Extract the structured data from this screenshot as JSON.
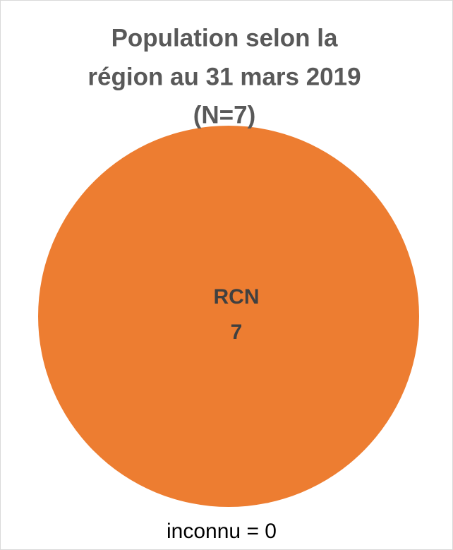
{
  "chart_data": {
    "type": "pie",
    "title": [
      "Population selon la",
      "région au 31 mars 2019",
      "(N=7)"
    ],
    "categories": [
      "RCN"
    ],
    "values": [
      7
    ],
    "colors": [
      "#ed7d31"
    ],
    "annotation": "inconnu = 0"
  }
}
